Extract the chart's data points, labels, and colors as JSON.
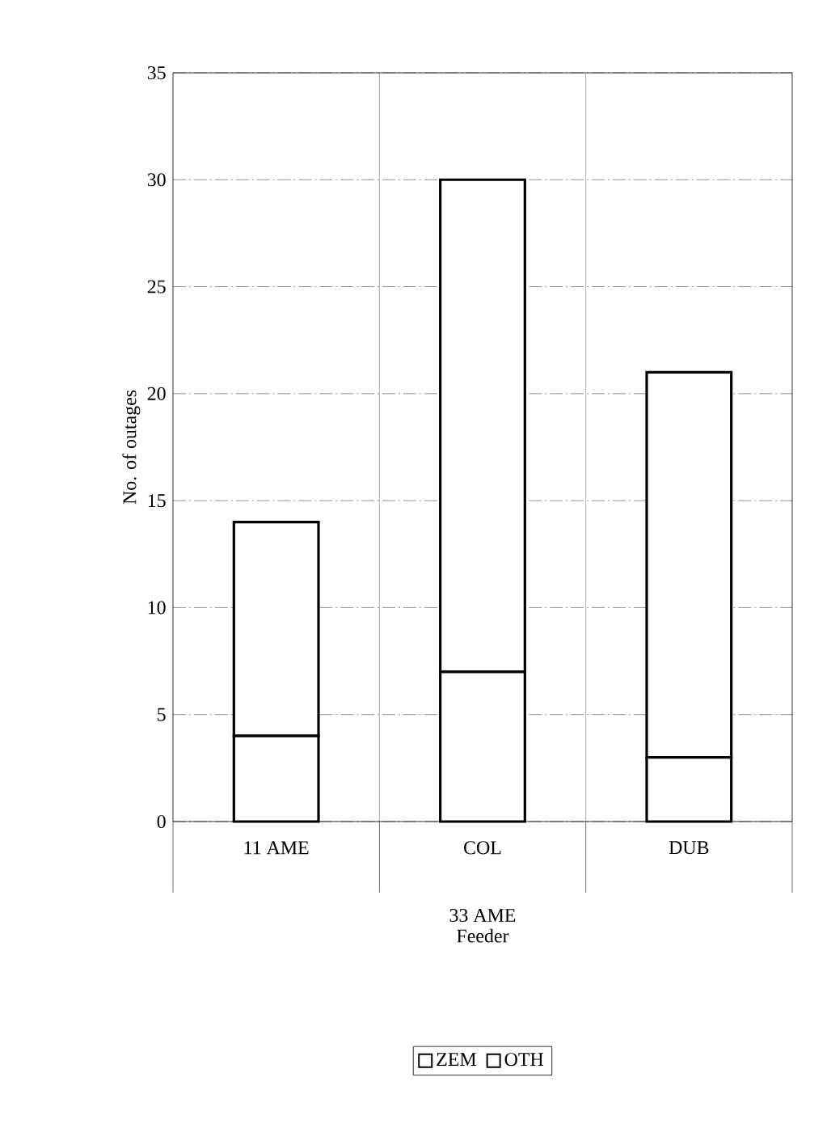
{
  "chart_data": {
    "type": "bar",
    "stacked": true,
    "xlabel": "Feeder",
    "ylabel": "No. of outages",
    "annotations": [
      "33 AME"
    ],
    "categories": [
      "11 AME",
      "COL",
      "DUB"
    ],
    "series": [
      {
        "name": "ZEM",
        "color": "#ffffff",
        "values": [
          4,
          7,
          3
        ]
      },
      {
        "name": "OTH",
        "color": "#ffffff",
        "values": [
          10,
          23,
          18
        ]
      }
    ],
    "ylim": [
      0,
      35
    ],
    "yticks": [
      0,
      5,
      10,
      15,
      20,
      25,
      30,
      35
    ],
    "grid": true,
    "legend": "bottom"
  }
}
